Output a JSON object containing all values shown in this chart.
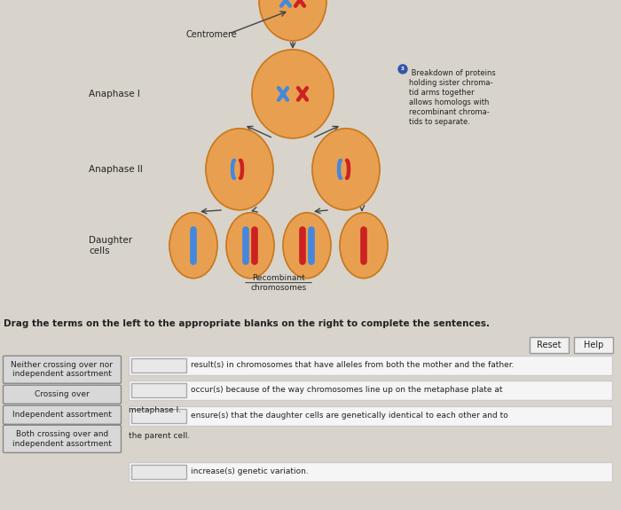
{
  "bg_top": "#d8d4cc",
  "bg_bottom": "#f0eeec",
  "bg_white_strip": "#ffffff",
  "orange_fill": "#E8A050",
  "orange_edge": "#C87820",
  "blue_chr": "#4488DD",
  "red_chr": "#CC2222",
  "label_color": "#222222",
  "note_color": "#222222",
  "arrow_color": "#444444",
  "term_box_bg": "#d8d8d8",
  "term_box_edge": "#888888",
  "sentence_box_bg": "#f5f5f5",
  "sentence_box_edge": "#cccccc",
  "blank_box_bg": "#e8e8e8",
  "blank_box_edge": "#aaaaaa",
  "btn_bg": "#f0f0f0",
  "btn_edge": "#999999",
  "instruction_text": "Drag the terms on the left to the appropriate blanks on the right to complete the sentences.",
  "metaphase_note": "metaphase I plate.",
  "centromere_label": "Centromere",
  "anaphase1_label": "Anaphase I",
  "anaphase2_label": "Anaphase II",
  "daughter_label": "Daughter\ncells",
  "recombinant_label": "Recombinant\nchromosomes",
  "breakdown_note": "④ Breakdown of proteins\nholding sister chroma-\ntid arms together\nallows homologs with\nrecombinant chroma-\ntids to separate.",
  "left_terms": [
    "Neither crossing over nor\nindependent assortment",
    "Crossing over",
    "Independent assortment",
    "Both crossing over and\nindependent assortment"
  ],
  "sentences": [
    "result(s) in chromosomes that have alleles from both the mother and the father.",
    "occur(s) because of the way chromosomes line up on the metaphase plate at",
    "metaphase I.",
    "ensure(s) that the daughter cells are genetically identical to each other and to",
    "the parent cell.",
    "increase(s) genetic variation."
  ]
}
